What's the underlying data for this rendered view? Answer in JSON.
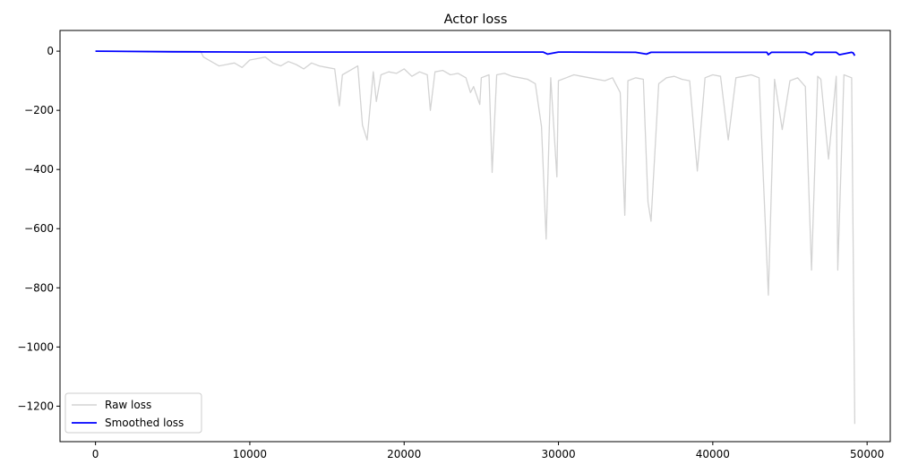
{
  "chart_data": {
    "type": "line",
    "title": "Actor loss",
    "xlabel": "",
    "ylabel": "",
    "xlim": [
      -2300,
      51500
    ],
    "ylim": [
      -1320,
      70
    ],
    "x_ticks": [
      0,
      10000,
      20000,
      30000,
      40000,
      50000
    ],
    "x_tick_labels": [
      "0",
      "10000",
      "20000",
      "30000",
      "40000",
      "50000"
    ],
    "y_ticks": [
      0,
      -200,
      -400,
      -600,
      -800,
      -1000,
      -1200
    ],
    "y_tick_labels": [
      "0",
      "−200",
      "−400",
      "−600",
      "−800",
      "−1000",
      "−1200"
    ],
    "grid": false,
    "legend_position": "lower-left",
    "series": [
      {
        "name": "Raw loss",
        "color": "#d3d3d3",
        "x": [
          0,
          6800,
          7000,
          7500,
          8000,
          8500,
          9000,
          9500,
          10000,
          10500,
          11000,
          11500,
          12000,
          12500,
          13000,
          13500,
          14000,
          14500,
          15000,
          15500,
          15800,
          16000,
          16500,
          17000,
          17300,
          17600,
          18000,
          18200,
          18500,
          19000,
          19500,
          20000,
          20500,
          21000,
          21500,
          21700,
          22000,
          22500,
          23000,
          23500,
          24000,
          24300,
          24500,
          24900,
          25000,
          25500,
          25700,
          26000,
          26500,
          27000,
          27500,
          28000,
          28500,
          28900,
          29200,
          29500,
          29900,
          30000,
          30500,
          31000,
          31500,
          32000,
          32500,
          33000,
          33500,
          34000,
          34300,
          34500,
          35000,
          35500,
          35800,
          36000,
          36500,
          37000,
          37500,
          38000,
          38500,
          39000,
          39500,
          40000,
          40500,
          41000,
          41500,
          42000,
          42500,
          43000,
          43600,
          44000,
          44500,
          45000,
          45500,
          46000,
          46400,
          46800,
          47000,
          47500,
          48000,
          48100,
          48500,
          49000,
          49200
        ],
        "y": [
          0,
          0,
          -20,
          -35,
          -50,
          -45,
          -40,
          -55,
          -30,
          -25,
          -20,
          -40,
          -50,
          -35,
          -45,
          -60,
          -40,
          -50,
          -55,
          -60,
          -185,
          -80,
          -65,
          -50,
          -250,
          -300,
          -70,
          -170,
          -80,
          -70,
          -75,
          -60,
          -85,
          -70,
          -80,
          -200,
          -70,
          -65,
          -80,
          -75,
          -90,
          -140,
          -120,
          -180,
          -90,
          -80,
          -410,
          -80,
          -75,
          -85,
          -90,
          -95,
          -110,
          -255,
          -635,
          -90,
          -425,
          -100,
          -90,
          -80,
          -85,
          -90,
          -95,
          -100,
          -90,
          -140,
          -555,
          -100,
          -90,
          -95,
          -510,
          -575,
          -110,
          -90,
          -85,
          -95,
          -100,
          -405,
          -90,
          -80,
          -85,
          -300,
          -90,
          -85,
          -80,
          -90,
          -825,
          -95,
          -265,
          -100,
          -90,
          -120,
          -740,
          -85,
          -95,
          -365,
          -85,
          -740,
          -80,
          -90,
          -1260
        ]
      },
      {
        "name": "Smoothed loss",
        "color": "#0000ff",
        "x": [
          0,
          5000,
          10000,
          15000,
          20000,
          25000,
          29000,
          29300,
          30000,
          35000,
          35700,
          36000,
          40000,
          43500,
          43600,
          43800,
          46000,
          46400,
          46600,
          48000,
          48200,
          49000,
          49100,
          49200
        ],
        "y": [
          0,
          -2,
          -3,
          -3,
          -3,
          -3,
          -3,
          -10,
          -3,
          -4,
          -10,
          -4,
          -4,
          -4,
          -12,
          -4,
          -4,
          -12,
          -4,
          -4,
          -12,
          -4,
          -6,
          -15
        ]
      }
    ]
  }
}
